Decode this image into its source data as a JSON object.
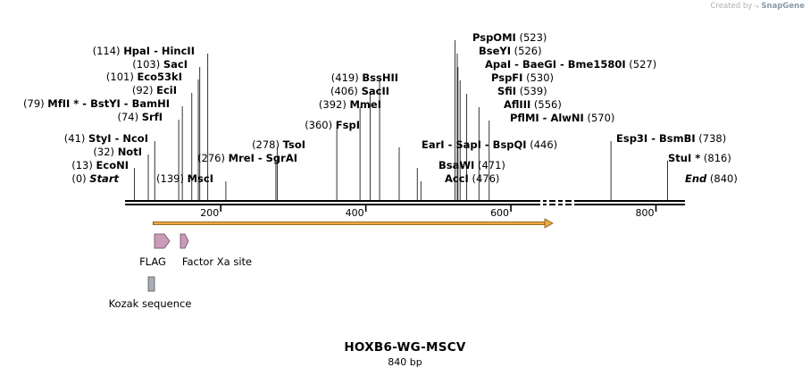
{
  "credit": {
    "prefix": "Created by",
    "brand": "SnapGene"
  },
  "map": {
    "name": "HOXB6-WG-MSCV",
    "length_label": "840 bp",
    "length_bp": 840,
    "visible_start": 68,
    "visible_end": 840
  },
  "ticks": [
    200,
    400,
    600,
    800
  ],
  "sites": [
    {
      "pos": "(0)",
      "name": "Start",
      "bp": 68,
      "italic": true
    },
    {
      "pos": "(13)",
      "name": "EcoNI",
      "bp": 81
    },
    {
      "pos": "(32)",
      "name": "NotI",
      "bp": 100
    },
    {
      "pos": "(41)",
      "name": "StyI  - NcoI",
      "bp": 109
    },
    {
      "pos": "(74)",
      "name": "SrfI",
      "bp": 142
    },
    {
      "pos": "(79)",
      "name": "MfII * - BstYI - BamHI",
      "bp": 147
    },
    {
      "pos": "(92)",
      "name": "EciI",
      "bp": 160
    },
    {
      "pos": "(101)",
      "name": "Eco53kI",
      "bp": 169
    },
    {
      "pos": "(103)",
      "name": "SacI",
      "bp": 171
    },
    {
      "pos": "(114)",
      "name": "HpaI  - HincII",
      "bp": 182
    },
    {
      "pos": "(139)",
      "name": "MscI",
      "bp": 207
    },
    {
      "pos": "(276)",
      "name": "MreI  - SgrAI",
      "bp": 276
    },
    {
      "pos": "(278)",
      "name": "TsoI",
      "bp": 278
    },
    {
      "pos": "(360)",
      "name": "FspI",
      "bp": 360
    },
    {
      "pos": "(392)",
      "name": "MmeI",
      "bp": 392
    },
    {
      "pos": "(406)",
      "name": "SacII",
      "bp": 406
    },
    {
      "pos": "(419)",
      "name": "BssHII",
      "bp": 419
    },
    {
      "pos": "",
      "name": "EarI  - SapI  - BspQI",
      "bp": 446,
      "suffix": "(446)"
    },
    {
      "pos": "",
      "name": "BsaWI",
      "bp": 471,
      "suffix": "(471)"
    },
    {
      "pos": "",
      "name": "AccI",
      "bp": 476,
      "suffix": "(476)"
    },
    {
      "pos": "",
      "name": "PspOMI",
      "bp": 523,
      "suffix": "(523)"
    },
    {
      "pos": "",
      "name": "BseYI",
      "bp": 526,
      "suffix": "(526)"
    },
    {
      "pos": "",
      "name": "ApaI  - BaeGI  - Bme1580I",
      "bp": 527,
      "suffix": "(527)"
    },
    {
      "pos": "",
      "name": "PspFI",
      "bp": 530,
      "suffix": "(530)"
    },
    {
      "pos": "",
      "name": "SfiI",
      "bp": 539,
      "suffix": "(539)"
    },
    {
      "pos": "",
      "name": "AflIII",
      "bp": 556,
      "suffix": "(556)"
    },
    {
      "pos": "",
      "name": "PflMI  - AlwNI",
      "bp": 570,
      "suffix": "(570)"
    },
    {
      "pos": "",
      "name": "Esp3I  - BsmBI",
      "bp": 738,
      "suffix": "(738)"
    },
    {
      "pos": "",
      "name": "StuI *",
      "bp": 816,
      "suffix": "(816)"
    },
    {
      "pos": "",
      "name": "End",
      "bp": 840,
      "suffix": "(840)",
      "italic": true
    }
  ],
  "features": [
    {
      "name": "FLAG",
      "type": "arrow",
      "color": "#c99bb8"
    },
    {
      "name": "Factor Xa site",
      "type": "arrow",
      "color": "#c99bb8"
    },
    {
      "name": "Kozak sequence",
      "type": "box",
      "color": "#a9aeb6"
    }
  ],
  "orf": {
    "color": "#f0a842",
    "outline": "#7a5a1a"
  },
  "colors": {
    "backbone": "#000000",
    "leader": "#333333"
  }
}
